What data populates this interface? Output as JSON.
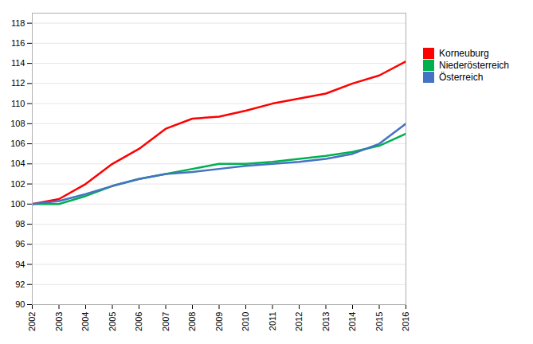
{
  "chart_data": {
    "type": "line",
    "x": [
      2002,
      2003,
      2004,
      2005,
      2006,
      2007,
      2008,
      2009,
      2010,
      2011,
      2012,
      2013,
      2014,
      2015,
      2016
    ],
    "series": [
      {
        "name": "Korneuburg",
        "color": "#ff0000",
        "values": [
          100.0,
          100.5,
          102.0,
          104.0,
          105.5,
          107.5,
          108.5,
          108.7,
          109.3,
          110.0,
          110.5,
          111.0,
          112.0,
          112.8,
          114.2
        ]
      },
      {
        "name": "Niederösterreich",
        "color": "#00b050",
        "values": [
          100.0,
          100.0,
          100.8,
          101.8,
          102.5,
          103.0,
          103.5,
          104.0,
          104.0,
          104.2,
          104.5,
          104.8,
          105.2,
          105.8,
          107.0
        ]
      },
      {
        "name": "Österreich",
        "color": "#4472c4",
        "values": [
          100.0,
          100.3,
          101.0,
          101.8,
          102.5,
          103.0,
          103.2,
          103.5,
          103.8,
          104.0,
          104.2,
          104.5,
          105.0,
          106.0,
          108.0
        ]
      }
    ],
    "xlim": [
      2002,
      2016
    ],
    "xticks": [
      2002,
      2003,
      2004,
      2005,
      2006,
      2007,
      2008,
      2009,
      2010,
      2011,
      2012,
      2013,
      2014,
      2015,
      2016
    ],
    "ylim": [
      90,
      119
    ],
    "yticks": [
      90,
      92,
      94,
      96,
      98,
      100,
      102,
      104,
      106,
      108,
      110,
      112,
      114,
      116,
      118
    ],
    "grid": "y",
    "legend": "right"
  }
}
